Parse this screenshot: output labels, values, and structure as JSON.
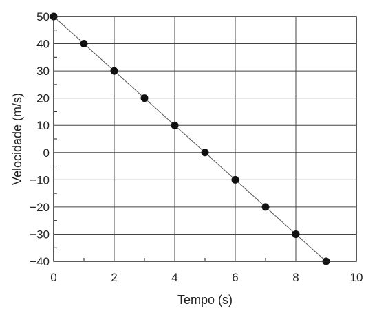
{
  "chart_data": {
    "type": "line",
    "xlabel": "Tempo (s)",
    "ylabel": "Velocidade (m/s)",
    "xlim": [
      0,
      10
    ],
    "ylim": [
      -40,
      50
    ],
    "x_ticks": [
      0,
      2,
      4,
      6,
      8,
      10
    ],
    "x_tick_labels": [
      "0",
      "2",
      "4",
      "6",
      "8",
      "10"
    ],
    "y_ticks": [
      50,
      40,
      30,
      20,
      10,
      0,
      -10,
      -20,
      -30,
      -40
    ],
    "y_tick_labels": [
      "50",
      "40",
      "30",
      "20",
      "10",
      "0",
      "−10",
      "−20",
      "−30",
      "−40"
    ],
    "grid": true,
    "series": [
      {
        "x": [
          0,
          1,
          2,
          3,
          4,
          5,
          6,
          7,
          8,
          9
        ],
        "y": [
          50,
          40,
          30,
          20,
          10,
          0,
          -10,
          -20,
          -30,
          -40
        ],
        "markers": "filled-circle",
        "line_color": "#555555",
        "marker_color": "#111111"
      }
    ]
  }
}
